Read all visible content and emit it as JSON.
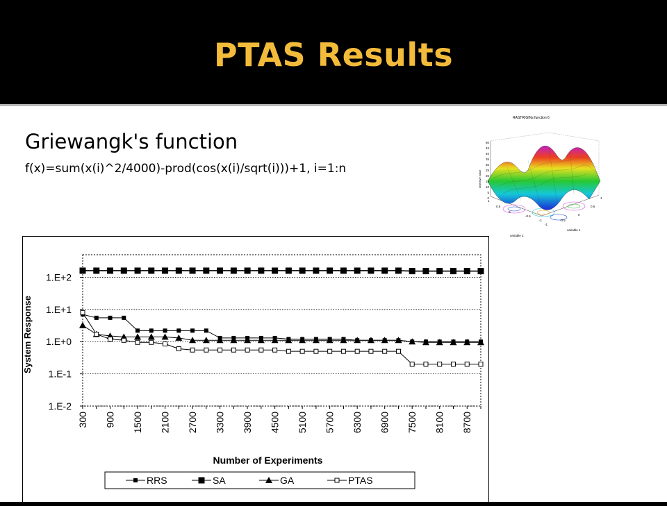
{
  "slide": {
    "title": "PTAS Results",
    "subtitle": "Griewangk's function",
    "formula": "f(x)=sum(x(i)^2/4000)-prod(cos(x(i)/sqrt(i)))+1, i=1:n"
  },
  "thumbnail": {
    "title": "RASTRIGINs function 6",
    "zlabel": "objective value",
    "xlabel": "variable 1",
    "ylabel": "variable 2",
    "zticks": [
      "50",
      "45",
      "40",
      "35",
      "30",
      "25",
      "20",
      "15",
      "10",
      "5",
      "0"
    ],
    "xticks": [
      "1",
      "0.5",
      "0",
      "-0.5",
      "-1"
    ],
    "yticks": [
      "-1",
      "-0.5",
      "0",
      "0.5",
      "1"
    ]
  },
  "colors": {
    "header_bg": "#000000",
    "title": "#f3bb3a",
    "content_bg": "#ffffff",
    "divider": "#b8b8b8"
  },
  "chart_data": {
    "type": "line",
    "xlabel": "Number of Experiments",
    "ylabel": "System Response",
    "y_scale": "log",
    "ylim": [
      0.01,
      500
    ],
    "grid": "dotted horizontal",
    "legend_placement": "bottom",
    "y_ticks": [
      {
        "value": 100,
        "label": "1.E+2"
      },
      {
        "value": 10,
        "label": "1.E+1"
      },
      {
        "value": 1,
        "label": "1.E+0"
      },
      {
        "value": 0.1,
        "label": "1.E-1"
      },
      {
        "value": 0.01,
        "label": "1.E-2"
      }
    ],
    "x_tick_labels": [
      "300",
      "900",
      "1500",
      "2100",
      "2700",
      "3300",
      "3900",
      "4500",
      "5100",
      "5700",
      "6300",
      "6900",
      "7500",
      "8100",
      "8700"
    ],
    "x": [
      300,
      600,
      900,
      1200,
      1500,
      1800,
      2100,
      2400,
      2700,
      3000,
      3300,
      3600,
      3900,
      4200,
      4500,
      4800,
      5100,
      5400,
      5700,
      6000,
      6300,
      6600,
      6900,
      7200,
      7500,
      7800,
      8100,
      8400,
      8700,
      9000
    ],
    "series": [
      {
        "name": "RRS",
        "marker": "square-small",
        "color": "#000000",
        "values": [
          7,
          5.5,
          5.5,
          5.5,
          2.2,
          2.2,
          2.2,
          2.2,
          2.2,
          2.2,
          1.3,
          1.3,
          1.3,
          1.3,
          1.3,
          1.2,
          1.2,
          1.2,
          1.2,
          1.2,
          1.1,
          1.1,
          1.1,
          1.1,
          1.0,
          1.0,
          1.0,
          1.0,
          1.0,
          1.0
        ]
      },
      {
        "name": "SA",
        "marker": "square-large",
        "color": "#000000",
        "values": [
          160,
          160,
          160,
          160,
          160,
          160,
          160,
          160,
          160,
          160,
          160,
          160,
          160,
          160,
          160,
          160,
          160,
          160,
          160,
          160,
          160,
          160,
          160,
          160,
          155,
          155,
          155,
          155,
          155,
          155
        ]
      },
      {
        "name": "GA",
        "marker": "triangle",
        "color": "#000000",
        "values": [
          3.2,
          1.7,
          1.5,
          1.4,
          1.4,
          1.4,
          1.4,
          1.3,
          1.1,
          1.1,
          1.1,
          1.1,
          1.1,
          1.1,
          1.1,
          1.1,
          1.1,
          1.1,
          1.1,
          1.1,
          1.1,
          1.1,
          1.1,
          1.1,
          1.0,
          0.95,
          0.95,
          0.95,
          0.95,
          0.95
        ]
      },
      {
        "name": "PTAS",
        "marker": "square-open",
        "color": "#000000",
        "values": [
          8,
          1.7,
          1.2,
          1.1,
          0.95,
          0.95,
          0.85,
          0.6,
          0.55,
          0.55,
          0.55,
          0.55,
          0.55,
          0.55,
          0.55,
          0.5,
          0.5,
          0.5,
          0.5,
          0.5,
          0.5,
          0.5,
          0.5,
          0.5,
          0.2,
          0.2,
          0.2,
          0.2,
          0.2,
          0.2
        ]
      }
    ]
  }
}
